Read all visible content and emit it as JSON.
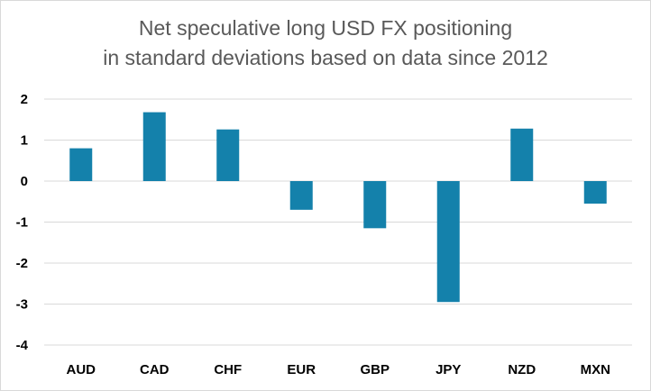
{
  "chart_data": {
    "type": "bar",
    "title": "Net speculative long USD FX positioning",
    "subtitle": "in standard deviations based on data since 2012",
    "categories": [
      "AUD",
      "CAD",
      "CHF",
      "EUR",
      "GBP",
      "JPY",
      "NZD",
      "MXN"
    ],
    "values": [
      0.8,
      1.68,
      1.26,
      -0.7,
      -1.15,
      -2.95,
      1.28,
      -0.55
    ],
    "ylim": [
      -4,
      2
    ],
    "yticks": [
      2,
      1,
      0,
      -1,
      -2,
      -3,
      -4
    ],
    "ytick_labels": [
      "2",
      "1",
      "0",
      "-1",
      "-2",
      "-3",
      "-4"
    ],
    "grid": true,
    "legend": "none",
    "colors": {
      "bar": "#1481AB",
      "grid": "#d9d9d9",
      "title": "#595959"
    }
  }
}
